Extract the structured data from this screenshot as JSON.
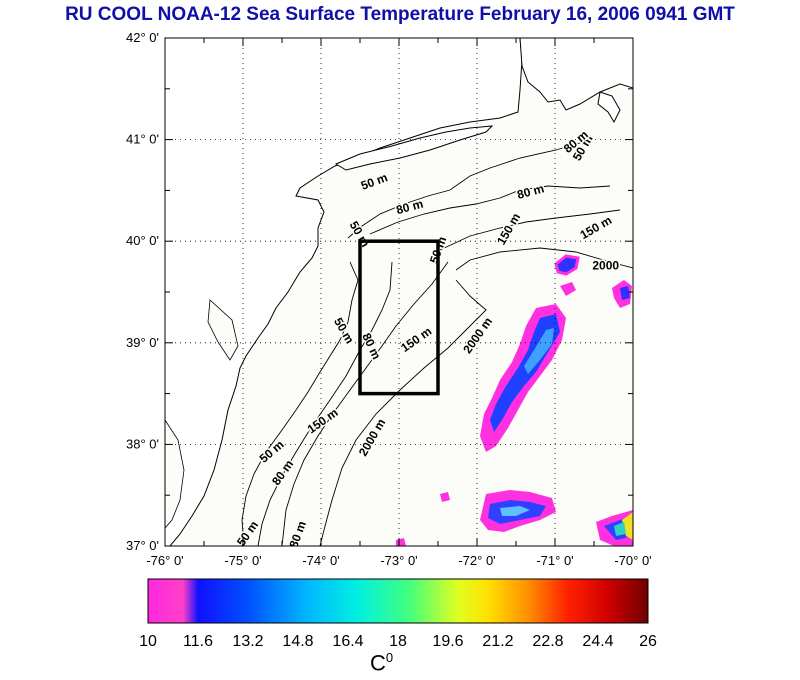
{
  "title": "RU COOL  NOAA-12 Sea Surface Temperature February 16, 2006 0941 GMT",
  "map": {
    "lon_labels": [
      "-76° 0'",
      "-75° 0'",
      "-74° 0'",
      "-73° 0'",
      "-72° 0'",
      "-71° 0'",
      "-70° 0'"
    ],
    "lat_labels": [
      "42° 0'",
      "41° 0'",
      "40° 0'",
      "39° 0'",
      "38° 0'",
      "37° 0'"
    ],
    "lon_range": [
      -76,
      -70
    ],
    "lat_range": [
      37,
      42
    ],
    "grid": "dotted",
    "study_box": {
      "lon": [
        -73.5,
        -72.5
      ],
      "lat": [
        38.5,
        40.0
      ]
    },
    "contour_labels": [
      {
        "text": "50 m",
        "lon": -73.3,
        "lat": 40.55,
        "rot": -20
      },
      {
        "text": "80 m",
        "lon": -72.85,
        "lat": 40.3,
        "rot": -15
      },
      {
        "text": "80 m",
        "lon": -71.3,
        "lat": 40.45,
        "rot": -15
      },
      {
        "text": "150 m",
        "lon": -71.55,
        "lat": 40.1,
        "rot": -60
      },
      {
        "text": "150 m",
        "lon": -70.45,
        "lat": 40.1,
        "rot": -30
      },
      {
        "text": "2000",
        "lon": -70.35,
        "lat": 39.72,
        "rot": 0
      },
      {
        "text": "50 m",
        "lon": -73.55,
        "lat": 40.05,
        "rot": 60
      },
      {
        "text": "50 m",
        "lon": -72.45,
        "lat": 39.9,
        "rot": -70
      },
      {
        "text": "150 m",
        "lon": -72.75,
        "lat": 39.0,
        "rot": -35
      },
      {
        "text": "2000 m",
        "lon": -71.95,
        "lat": 39.05,
        "rot": -55
      },
      {
        "text": "50 m",
        "lon": -73.75,
        "lat": 39.1,
        "rot": 60
      },
      {
        "text": "80 m",
        "lon": -73.4,
        "lat": 38.95,
        "rot": 65
      },
      {
        "text": "150 m",
        "lon": -73.95,
        "lat": 38.2,
        "rot": -35
      },
      {
        "text": "2000 m",
        "lon": -73.3,
        "lat": 38.05,
        "rot": -60
      },
      {
        "text": "50 m",
        "lon": -74.6,
        "lat": 37.9,
        "rot": -40
      },
      {
        "text": "80 m",
        "lon": -74.45,
        "lat": 37.7,
        "rot": -55
      },
      {
        "text": "50 m",
        "lon": -74.9,
        "lat": 37.1,
        "rot": -55
      },
      {
        "text": "80 m",
        "lon": -74.25,
        "lat": 37.1,
        "rot": -70
      },
      {
        "text": "50 m",
        "lon": -70.6,
        "lat": 40.9,
        "rot": -60
      },
      {
        "text": "80 m",
        "lon": -70.7,
        "lat": 40.95,
        "rot": -40
      }
    ]
  },
  "colorbar": {
    "min": 10,
    "max": 26,
    "tick_labels": [
      "10",
      "11.6",
      "13.2",
      "14.8",
      "16.4",
      "18",
      "19.6",
      "21.2",
      "22.8",
      "24.4",
      "26"
    ],
    "unit_label": "C",
    "unit_sup": "0",
    "colors": [
      "#ff20e8",
      "#ff30d0",
      "#1010ff",
      "#0060ff",
      "#00b0ff",
      "#00e8e0",
      "#30ff90",
      "#c0ff20",
      "#ffff00",
      "#ffc000",
      "#ff7000",
      "#ff2000",
      "#d00000",
      "#700000"
    ]
  }
}
